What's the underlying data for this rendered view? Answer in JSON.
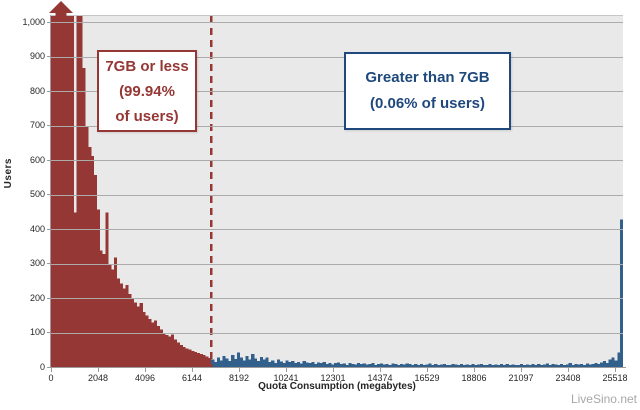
{
  "watermark": "LiveSino.net",
  "colors": {
    "red": "#953734",
    "blue": "#31608C",
    "blue_dark": "#1F497D",
    "plot_bg": "#E9E9E9",
    "grid": "#ABABAB",
    "axis": "#9B9B9B",
    "tick_text": "#262626",
    "watermark_text": "#A8A8A8"
  },
  "chart_data": {
    "type": "bar",
    "subtype": "histogram",
    "title": "",
    "xlabel": "Quota Consumption (megabytes)",
    "ylabel": "Users",
    "ylim": [
      0,
      1020
    ],
    "grid": "horizontal",
    "legend": "none",
    "clip": {
      "value": 1000,
      "note": "Leftmost bars exceed the 1,000-user axis maximum; indicated by upward arrow above chart"
    },
    "ytick_values": [
      0,
      100,
      200,
      300,
      400,
      500,
      600,
      700,
      800,
      900,
      1000
    ],
    "ytick_labels": [
      "0",
      "100",
      "200",
      "300",
      "400",
      "500",
      "600",
      "700",
      "800",
      "900",
      "1,000"
    ],
    "xtick_labels": [
      "0",
      "2048",
      "4096",
      "6144",
      "8192",
      "10241",
      "12301",
      "14374",
      "16529",
      "18806",
      "21097",
      "23408",
      "25518"
    ],
    "bin_width_mb": 128,
    "x_range_mb": [
      0,
      25600
    ],
    "threshold_mb": 7168,
    "threshold_line": {
      "style": "dashed",
      "color": "#953734"
    },
    "series": [
      {
        "name": "7GB or less",
        "pct_label": "(99.94% of users)",
        "color": "#953734",
        "values": [
          1020,
          1020,
          1020,
          1020,
          1020,
          1020,
          1020,
          1020,
          450,
          1020,
          1020,
          870,
          700,
          640,
          615,
          560,
          460,
          340,
          330,
          450,
          300,
          285,
          320,
          260,
          245,
          230,
          240,
          215,
          200,
          190,
          178,
          188,
          162,
          152,
          142,
          132,
          137,
          122,
          112,
          102,
          96,
          92,
          97,
          82,
          74,
          66,
          61,
          56,
          53,
          49,
          46,
          43,
          40,
          37,
          33,
          29
        ]
      },
      {
        "name": "Greater than 7GB",
        "pct_label": "(0.06% of users)",
        "color": "#31608C",
        "values": [
          25,
          18,
          30,
          22,
          35,
          28,
          20,
          38,
          26,
          45,
          30,
          22,
          35,
          25,
          40,
          28,
          20,
          32,
          24,
          30,
          18,
          22,
          15,
          25,
          19,
          14,
          22,
          17,
          20,
          15,
          18,
          13,
          20,
          16,
          14,
          18,
          12,
          16,
          14,
          17,
          12,
          15,
          10,
          14,
          16,
          11,
          13,
          9,
          14,
          12,
          10,
          15,
          11,
          13,
          10,
          12,
          14,
          9,
          11,
          13,
          10,
          12,
          8,
          13,
          11,
          9,
          12,
          10,
          13,
          11,
          8,
          11,
          9,
          12,
          8,
          10,
          13,
          9,
          11,
          8,
          10,
          12,
          9,
          8,
          11,
          10,
          9,
          12,
          8,
          10,
          9,
          11,
          8,
          10,
          12,
          9,
          8,
          11,
          9,
          10,
          8,
          12,
          9,
          11,
          8,
          10,
          9,
          8,
          11,
          9,
          10,
          8,
          12,
          9,
          11,
          8,
          10,
          13,
          9,
          11,
          10,
          8,
          12,
          9,
          10,
          14,
          9,
          11,
          10,
          12,
          9,
          13,
          10,
          12,
          14,
          12,
          16,
          20,
          15,
          25,
          30,
          22,
          45,
          430
        ]
      }
    ],
    "annotations": [
      {
        "id": "red-note",
        "lines": [
          "7GB or less",
          "(99.94%",
          "of users)"
        ]
      },
      {
        "id": "blue-note",
        "lines": [
          "Greater than 7GB",
          "(0.06% of users)"
        ]
      }
    ]
  }
}
